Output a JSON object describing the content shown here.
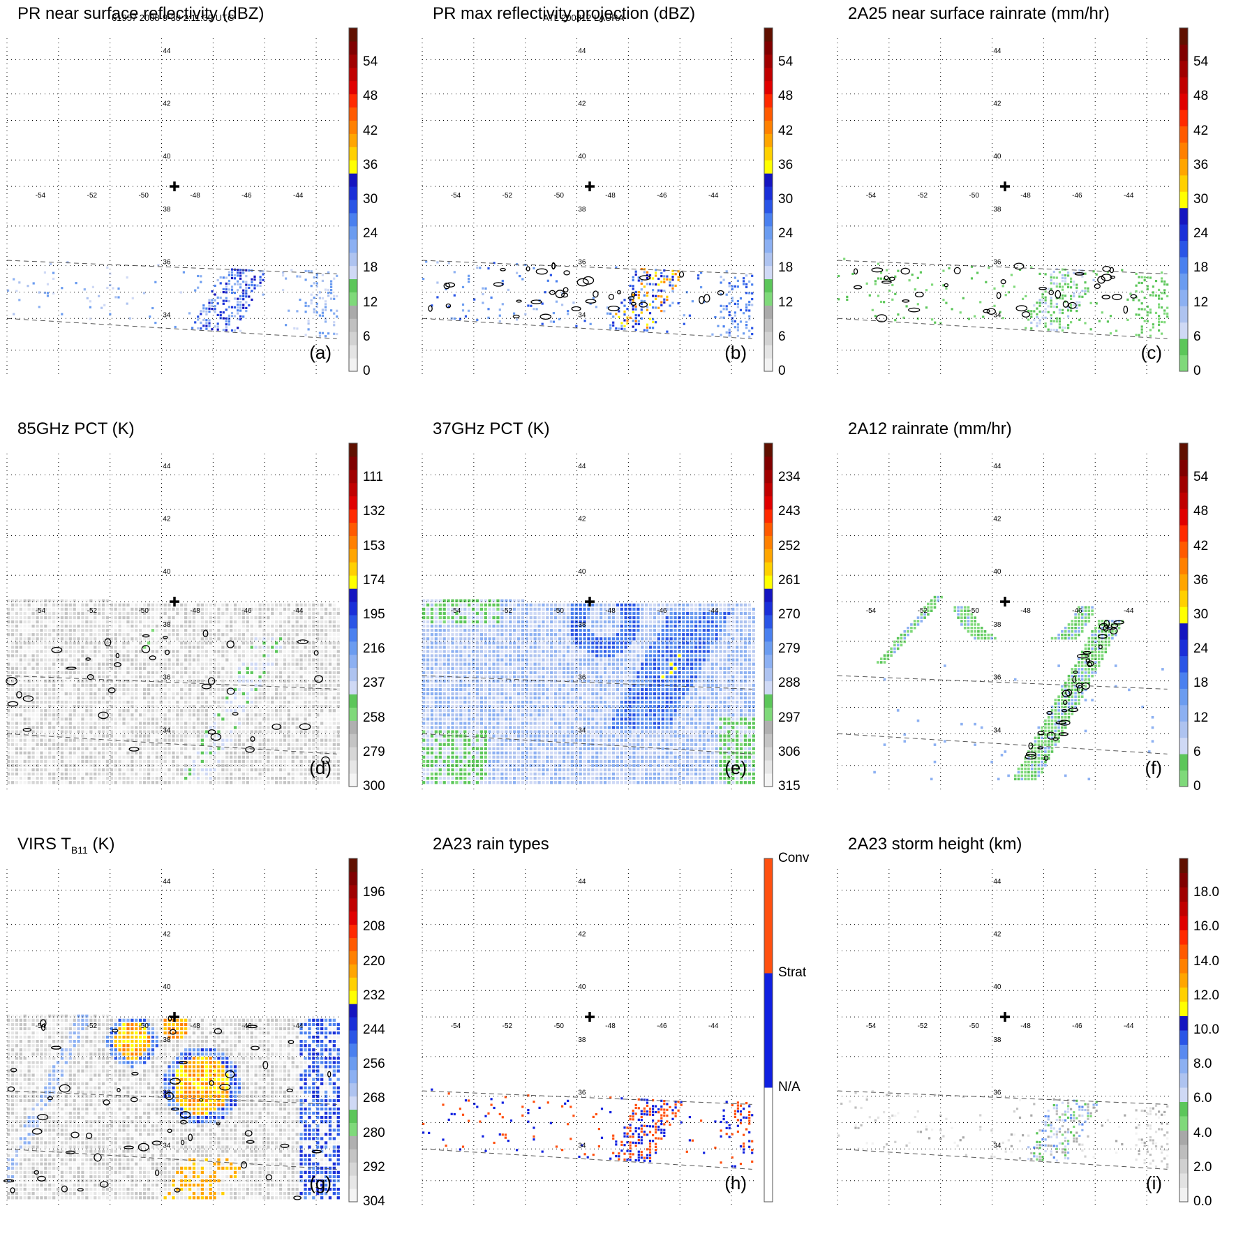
{
  "header": {
    "orbit_time": "61957 2008-9-30 2:11:39 UTC",
    "storm": "ATL 200812 LAURA"
  },
  "icons": {
    "storm_center": "plus-icon"
  },
  "colors": {
    "dbz": [
      "#f2f2f2",
      "#e4e4e4",
      "#d2d2d2",
      "#c0c0c0",
      "#aaaaaa",
      "#7fd97a",
      "#5cc65a",
      "#cfd9f5",
      "#aec3f0",
      "#8cb0f2",
      "#6b9cf0",
      "#4a80ef",
      "#2a55e6",
      "#1a2fd8",
      "#1515c0",
      "#ffff00",
      "#ffd000",
      "#ffa500",
      "#ff8000",
      "#ff5a00",
      "#ff2a00",
      "#e00000",
      "#c00000",
      "#a00000",
      "#800000",
      "#601000"
    ],
    "rain": [
      "#7fd97a",
      "#5cc65a",
      "#cfd9f5",
      "#aec3f0",
      "#8cb0f2",
      "#6b9cf0",
      "#4a80ef",
      "#2a55e6",
      "#1a2fd8",
      "#1515c0",
      "#ffff00",
      "#ffd000",
      "#ffa500",
      "#ff8000",
      "#ff5a00",
      "#ff2a00",
      "#e00000",
      "#c00000",
      "#a00000",
      "#800000",
      "#601000"
    ],
    "tb": [
      "#f4f4f4",
      "#e6e6e6",
      "#d6d6d6",
      "#c4c4c4",
      "#b0b0b0",
      "#7fd97a",
      "#5cc65a",
      "#cfd9f5",
      "#aec3f0",
      "#8cb0f2",
      "#6b9cf0",
      "#4a80ef",
      "#2a55e6",
      "#1a2fd8",
      "#1515c0",
      "#ffff00",
      "#ffd000",
      "#ffa500",
      "#ff8000",
      "#ff5a00",
      "#ff2a00",
      "#e00000",
      "#c00000",
      "#a00000",
      "#800000",
      "#601000"
    ],
    "types": [
      "#ffffff",
      "#1020e0",
      "#ff5010"
    ],
    "height": [
      "#f2f2f2",
      "#e2e2e2",
      "#d0d0d0",
      "#bdbdbd",
      "#a8a8a8",
      "#7fd97a",
      "#5cc65a",
      "#cfd9f5",
      "#aec3f0",
      "#8cb0f2",
      "#5a8af0",
      "#2a55e6",
      "#1515c0",
      "#ffff00",
      "#ffd000",
      "#ffa500",
      "#ff8000",
      "#ff5a00",
      "#ff2a00",
      "#e00000",
      "#c00000",
      "#a00000",
      "#800000",
      "#601000"
    ]
  },
  "chart_data": [
    {
      "id": "a",
      "type": "heatmap",
      "title": "PR near surface reflectivity (dBZ)",
      "panel_label": "(a)",
      "lon_ticks": [
        -54,
        -52,
        -50,
        -48,
        -46,
        -44
      ],
      "lat_ticks": [
        44,
        42,
        40,
        38,
        36,
        34
      ],
      "lon_range": [
        -55,
        -42
      ],
      "lat_range": [
        32,
        45
      ],
      "swath": "pr",
      "palette": "dbz",
      "field": "scatter_weak",
      "contours": false,
      "colorbar": {
        "ticks": [
          "0",
          "6",
          "12",
          "18",
          "24",
          "30",
          "36",
          "42",
          "48",
          "54"
        ],
        "range": [
          0,
          60
        ]
      },
      "center": {
        "lon": -48.5,
        "lat": 39.0
      }
    },
    {
      "id": "b",
      "type": "heatmap",
      "title": "PR max reflectivity projection (dBZ)",
      "panel_label": "(b)",
      "lon_ticks": [
        -54,
        -52,
        -50,
        -48,
        -46,
        -44
      ],
      "lat_ticks": [
        44,
        42,
        40,
        38,
        36,
        34
      ],
      "lon_range": [
        -55,
        -42
      ],
      "lat_range": [
        32,
        45
      ],
      "swath": "pr",
      "palette": "dbz",
      "field": "scatter_strong",
      "contours": true,
      "colorbar": {
        "ticks": [
          "0",
          "6",
          "12",
          "18",
          "24",
          "30",
          "36",
          "42",
          "48",
          "54"
        ],
        "range": [
          0,
          60
        ]
      },
      "center": {
        "lon": -48.5,
        "lat": 39.0
      }
    },
    {
      "id": "c",
      "type": "heatmap",
      "title": "2A25 near surface rainrate (mm/hr)",
      "panel_label": "(c)",
      "lon_ticks": [
        -54,
        -52,
        -50,
        -48,
        -46,
        -44
      ],
      "lat_ticks": [
        44,
        42,
        40,
        38,
        36,
        34
      ],
      "lon_range": [
        -55,
        -42
      ],
      "lat_range": [
        32,
        45
      ],
      "swath": "pr",
      "palette": "rain",
      "field": "scatter_rain",
      "contours": true,
      "colorbar": {
        "ticks": [
          "0",
          "6",
          "12",
          "18",
          "24",
          "30",
          "36",
          "42",
          "48",
          "54"
        ],
        "range": [
          0,
          60
        ]
      },
      "center": {
        "lon": -48.5,
        "lat": 39.0
      }
    },
    {
      "id": "d",
      "type": "heatmap",
      "title": "85GHz PCT (K)",
      "panel_label": "(d)",
      "lon_ticks": [
        -54,
        -52,
        -50,
        -48,
        -46,
        -44
      ],
      "lat_ticks": [
        44,
        42,
        40,
        38,
        36,
        34
      ],
      "lon_range": [
        -55,
        -42
      ],
      "lat_range": [
        32,
        45
      ],
      "swath": "tmi",
      "palette": "tb",
      "field": "pct85",
      "contours": true,
      "colorbar": {
        "ticks": [
          "300",
          "279",
          "258",
          "237",
          "216",
          "195",
          "174",
          "153",
          "132",
          "111"
        ],
        "range": [
          300,
          90
        ]
      },
      "center": {
        "lon": -48.5,
        "lat": 39.0
      }
    },
    {
      "id": "e",
      "type": "heatmap",
      "title": "37GHz PCT (K)",
      "panel_label": "(e)",
      "lon_ticks": [
        -54,
        -52,
        -50,
        -48,
        -46,
        -44
      ],
      "lat_ticks": [
        44,
        42,
        40,
        38,
        36,
        34
      ],
      "lon_range": [
        -55,
        -42
      ],
      "lat_range": [
        32,
        45
      ],
      "swath": "tmi",
      "palette": "tb",
      "field": "pct37",
      "contours": false,
      "colorbar": {
        "ticks": [
          "315",
          "306",
          "297",
          "288",
          "279",
          "270",
          "261",
          "252",
          "243",
          "234"
        ],
        "range": [
          315,
          225
        ]
      },
      "center": {
        "lon": -48.5,
        "lat": 39.0
      }
    },
    {
      "id": "f",
      "type": "heatmap",
      "title": "2A12 rainrate (mm/hr)",
      "panel_label": "(f)",
      "lon_ticks": [
        -54,
        -52,
        -50,
        -48,
        -46,
        -44
      ],
      "lat_ticks": [
        44,
        42,
        40,
        38,
        36,
        34
      ],
      "lon_range": [
        -55,
        -42
      ],
      "lat_range": [
        32,
        45
      ],
      "swath": "pr",
      "palette": "rain",
      "field": "bands",
      "contours": true,
      "colorbar": {
        "ticks": [
          "0",
          "6",
          "12",
          "18",
          "24",
          "30",
          "36",
          "42",
          "48",
          "54"
        ],
        "range": [
          0,
          60
        ]
      },
      "center": {
        "lon": -48.5,
        "lat": 39.0
      }
    },
    {
      "id": "g",
      "type": "heatmap",
      "title": "VIRS T",
      "title_sub": "B11",
      "title_end": " (K)",
      "panel_label": "(g)",
      "lon_ticks": [
        -54,
        -52,
        -50,
        -48,
        -46,
        -44
      ],
      "lat_ticks": [
        44,
        42,
        40,
        38,
        36,
        34
      ],
      "lon_range": [
        -55,
        -42
      ],
      "lat_range": [
        32,
        45
      ],
      "swath": "tmi",
      "palette": "tb",
      "field": "virs",
      "contours": true,
      "colorbar": {
        "ticks": [
          "304",
          "292",
          "280",
          "268",
          "256",
          "244",
          "232",
          "220",
          "208",
          "196"
        ],
        "range": [
          304,
          184
        ]
      },
      "center": {
        "lon": -48.5,
        "lat": 39.0
      }
    },
    {
      "id": "h",
      "type": "heatmap",
      "title": "2A23 rain types",
      "panel_label": "(h)",
      "lon_ticks": [
        -54,
        -52,
        -50,
        -48,
        -46,
        -44
      ],
      "lat_ticks": [
        44,
        42,
        40,
        38,
        36,
        34
      ],
      "lon_range": [
        -55,
        -42
      ],
      "lat_range": [
        32,
        45
      ],
      "swath": "pr",
      "palette": "types",
      "field": "types",
      "contours": false,
      "colorbar": {
        "ticks": [
          "N/A",
          "Strat",
          "Conv"
        ],
        "range": [
          0,
          3
        ],
        "categorical": true
      },
      "center": {
        "lon": -48.5,
        "lat": 39.0
      }
    },
    {
      "id": "i",
      "type": "heatmap",
      "title": "2A23 storm height (km)",
      "panel_label": "(i)",
      "lon_ticks": [
        -54,
        -52,
        -50,
        -48,
        -46,
        -44
      ],
      "lat_ticks": [
        44,
        42,
        40,
        38,
        36,
        34
      ],
      "lon_range": [
        -55,
        -42
      ],
      "lat_range": [
        32,
        45
      ],
      "swath": "pr",
      "palette": "height",
      "field": "height",
      "contours": false,
      "colorbar": {
        "ticks": [
          "0.0",
          "2.0",
          "4.0",
          "6.0",
          "8.0",
          "10.0",
          "12.0",
          "14.0",
          "16.0",
          "18.0"
        ],
        "range": [
          0,
          20
        ]
      },
      "center": {
        "lon": -48.5,
        "lat": 39.0
      }
    }
  ]
}
